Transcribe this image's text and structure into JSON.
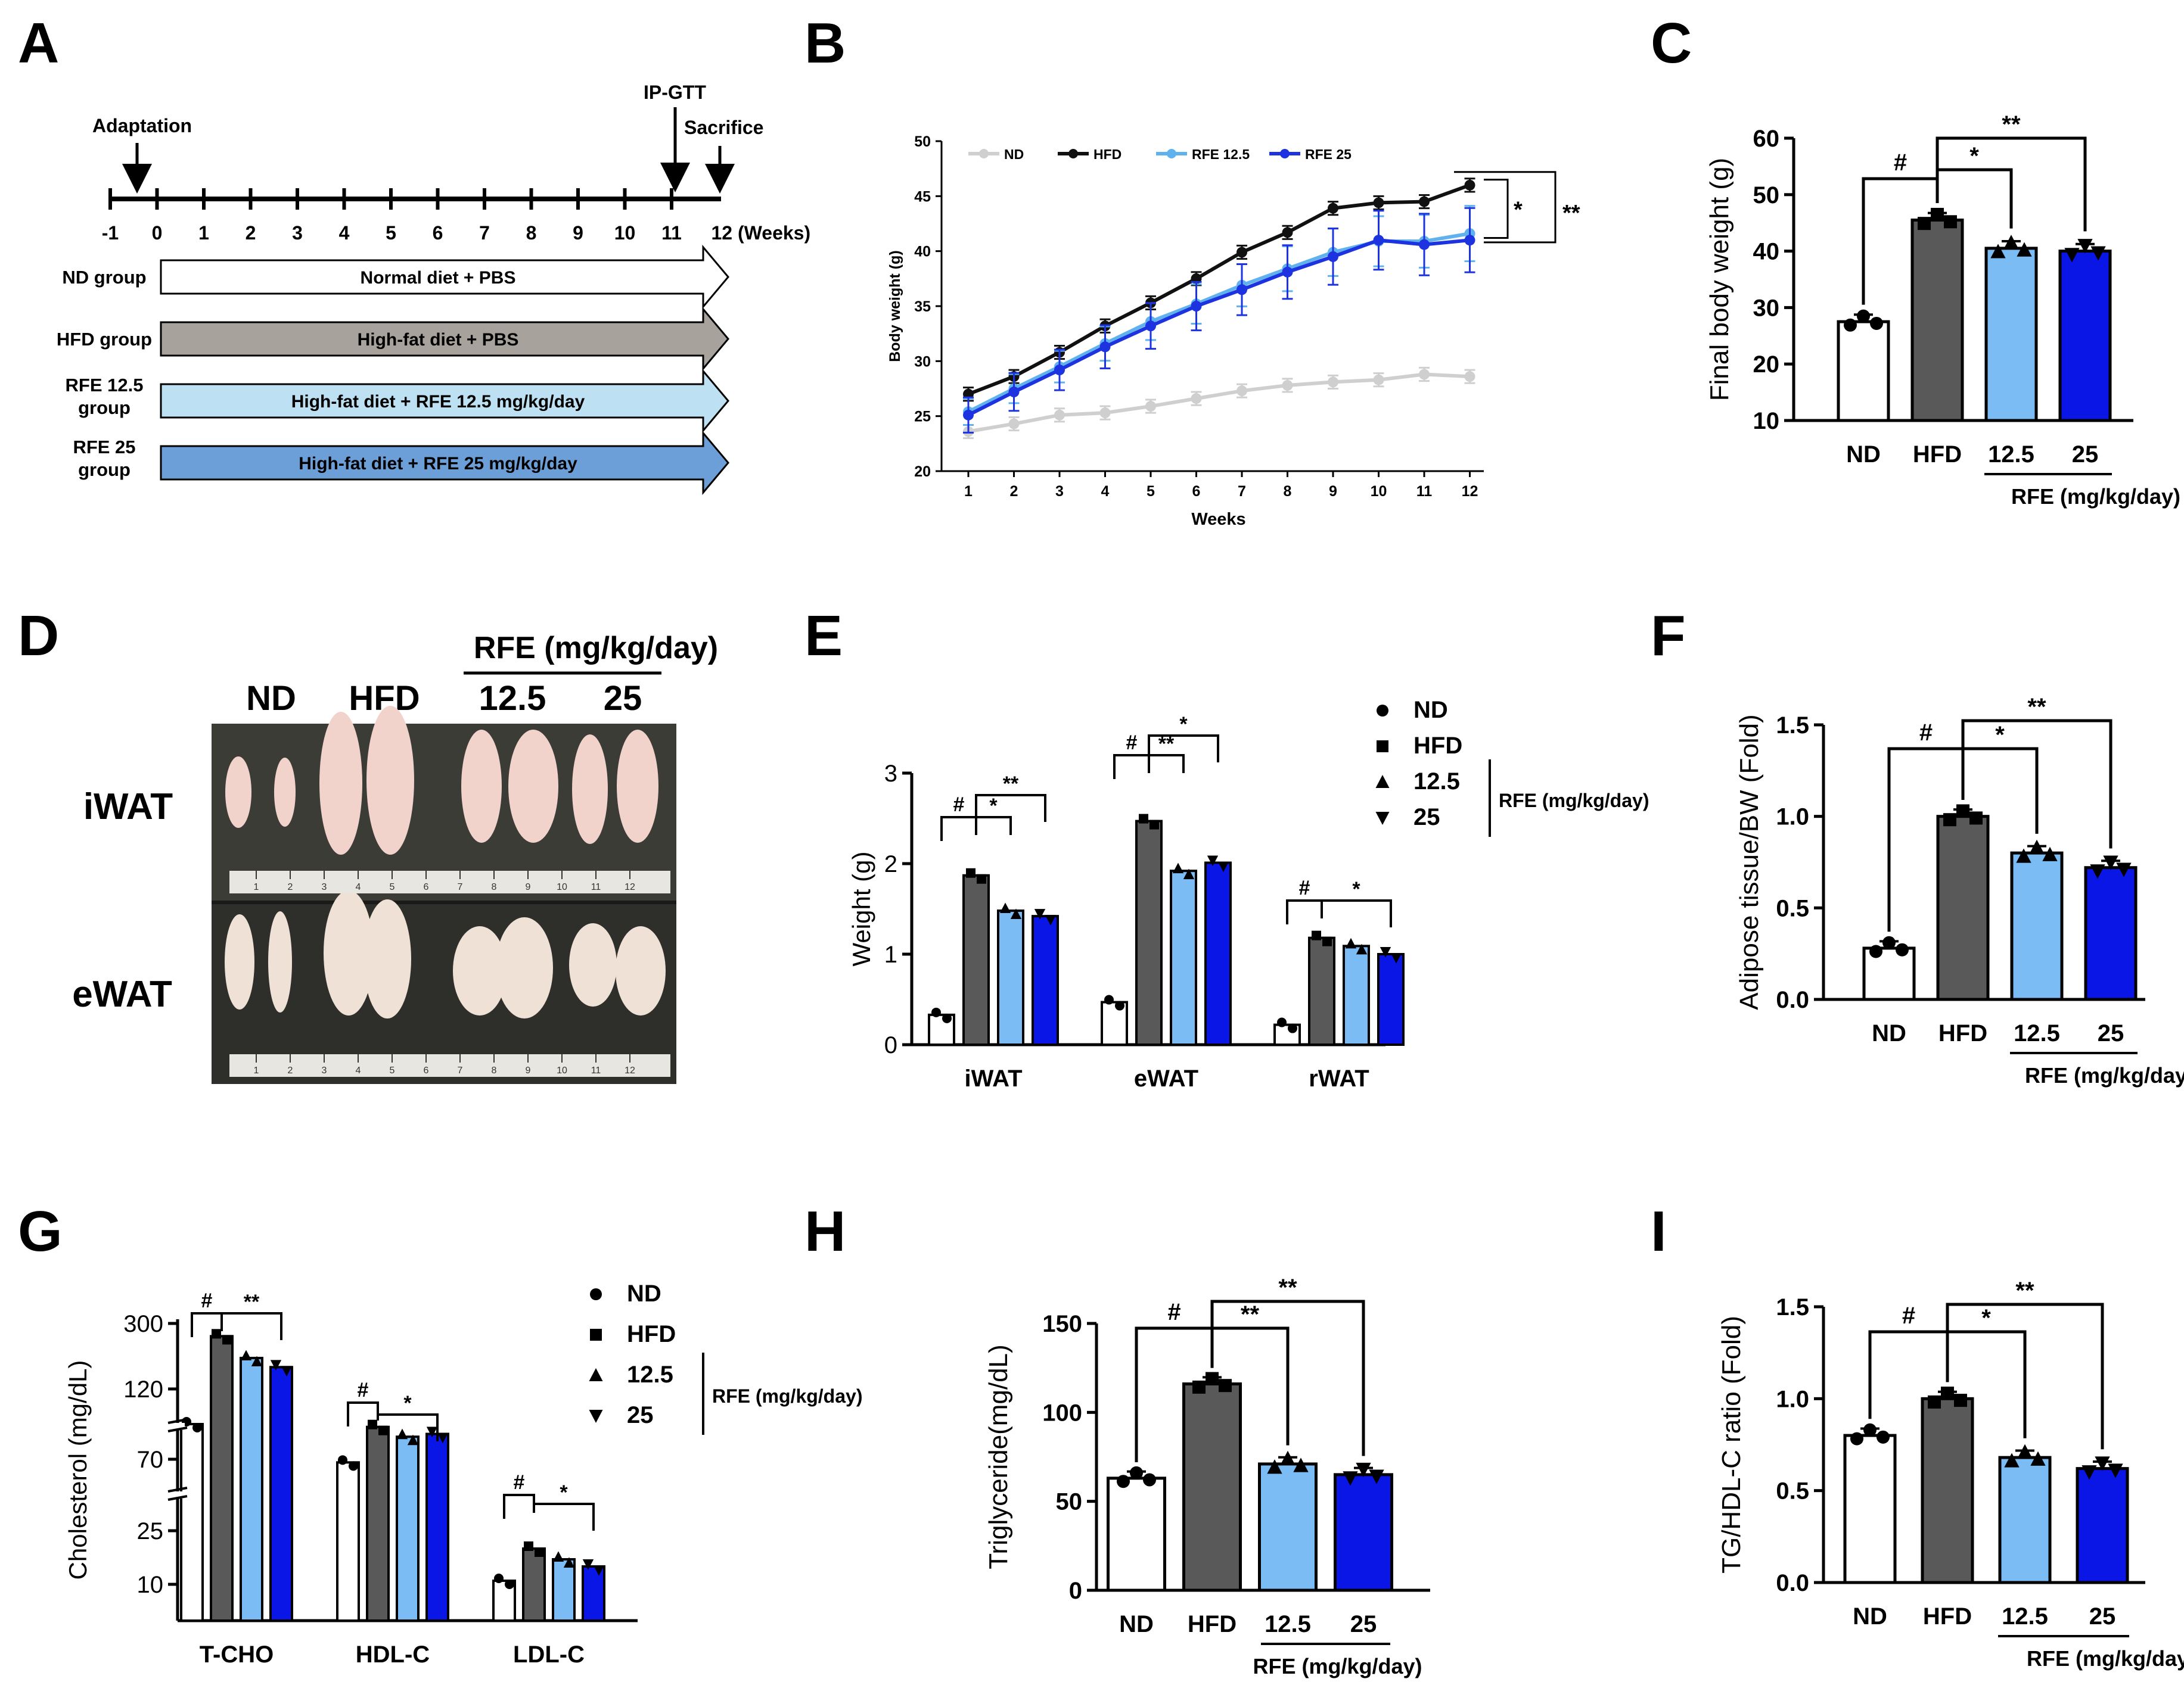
{
  "colors": {
    "nd": "#ffffff",
    "hfd": "#595959",
    "rfe125": "#7bbcf5",
    "rfe25": "#0a16e6",
    "line_nd": "#cfcfcf",
    "line_hfd": "#111111",
    "line_rfe125": "#5fb2ee",
    "line_rfe25": "#1d33e0",
    "gray_arrow": "#a8a29c",
    "light_blue_arrow": "#bde0f3",
    "blue_arrow": "#6c9fd8",
    "photo_bg": "#2e2f2b"
  },
  "panels": {
    "A": "A",
    "B": "B",
    "C": "C",
    "D": "D",
    "E": "E",
    "F": "F",
    "G": "G",
    "H": "H",
    "I": "I"
  },
  "sig": {
    "hash": "#",
    "one": "*",
    "two": "**"
  },
  "timeline": {
    "adaptation": "Adaptation",
    "ipgtt": "IP-GTT",
    "sacrifice": "Sacrifice",
    "ticks": [
      "-1",
      "0",
      "1",
      "2",
      "3",
      "4",
      "5",
      "6",
      "7",
      "8",
      "9",
      "10",
      "11",
      "12 (Weeks)"
    ],
    "groups": [
      {
        "label1": "ND group",
        "label2": "",
        "text": "Normal diet + PBS",
        "color": "#ffffff"
      },
      {
        "label1": "HFD group",
        "label2": "",
        "text": "High-fat diet + PBS",
        "color": "#a8a29c"
      },
      {
        "label1": "RFE 12.5",
        "label2": "group",
        "text": "High-fat diet + RFE 12.5 mg/kg/day",
        "color": "#bde0f3"
      },
      {
        "label1": "RFE 25",
        "label2": "group",
        "text": "High-fat diet + RFE 25 mg/kg/day",
        "color": "#6c9fd8"
      }
    ]
  },
  "photo": {
    "rfe_header": "RFE (mg/kg/day)",
    "cols": [
      "ND",
      "HFD",
      "12.5",
      "25"
    ],
    "rows": [
      "iWAT",
      "eWAT"
    ],
    "ruler": [
      "1",
      "2",
      "3",
      "4",
      "5",
      "6",
      "7",
      "8",
      "9",
      "10",
      "11",
      "12"
    ]
  },
  "legend_groups": [
    "ND",
    "HFD",
    "12.5",
    "25"
  ],
  "legend_rfe": "RFE (mg/kg/day)",
  "chart_data": [
    {
      "panel": "B",
      "type": "line",
      "xlabel": "Weeks",
      "ylabel": "Body weight (g)",
      "x": [
        1,
        2,
        3,
        4,
        5,
        6,
        7,
        8,
        9,
        10,
        11,
        12
      ],
      "ylim": [
        20,
        50
      ],
      "yticks": [
        20,
        25,
        30,
        35,
        40,
        45,
        50
      ],
      "series": [
        {
          "name": "ND",
          "values": [
            23.6,
            24.3,
            25.1,
            25.3,
            25.9,
            26.6,
            27.3,
            27.8,
            28.1,
            28.3,
            28.8,
            28.6
          ]
        },
        {
          "name": "HFD",
          "values": [
            27.0,
            28.6,
            30.8,
            33.2,
            35.3,
            37.5,
            39.9,
            41.7,
            43.9,
            44.4,
            44.5,
            46.0
          ]
        },
        {
          "name": "RFE 12.5",
          "values": [
            25.4,
            27.5,
            29.5,
            31.6,
            33.6,
            35.2,
            36.9,
            38.4,
            39.9,
            40.9,
            40.9,
            41.6
          ]
        },
        {
          "name": "RFE 25",
          "values": [
            25.1,
            27.2,
            29.2,
            31.3,
            33.2,
            35.0,
            36.5,
            38.1,
            39.5,
            41.0,
            40.6,
            41.0
          ]
        }
      ],
      "annotation_inner": "*",
      "annotation_outer": "**"
    },
    {
      "panel": "C",
      "type": "bar",
      "ylabel": "Final body weight (g)",
      "categories": [
        "ND",
        "HFD",
        "12.5",
        "25"
      ],
      "values": [
        27.5,
        45.5,
        40.5,
        40.0
      ],
      "ylim": [
        10,
        60
      ],
      "yticks": [
        10,
        20,
        30,
        40,
        50,
        60
      ],
      "xgroup": "RFE (mg/kg/day)"
    },
    {
      "panel": "E",
      "type": "bar",
      "ylabel": "Weight (g)",
      "categories": [
        "iWAT",
        "eWAT",
        "rWAT"
      ],
      "series": [
        {
          "name": "ND",
          "values": [
            0.33,
            0.47,
            0.22
          ]
        },
        {
          "name": "HFD",
          "values": [
            1.87,
            2.47,
            1.18
          ]
        },
        {
          "name": "12.5",
          "values": [
            1.48,
            1.92,
            1.09
          ]
        },
        {
          "name": "25",
          "values": [
            1.42,
            2.01,
            1.0
          ]
        }
      ],
      "ylim": [
        0,
        3
      ],
      "yticks": [
        0,
        1,
        2,
        3
      ]
    },
    {
      "panel": "F",
      "type": "bar",
      "ylabel": "Adipose tissue/BW (Fold)",
      "categories": [
        "ND",
        "HFD",
        "12.5",
        "25"
      ],
      "values": [
        0.28,
        1.0,
        0.8,
        0.72
      ],
      "ylim": [
        0,
        1.5
      ],
      "yticks": [
        "0.0",
        "0.5",
        "1.0",
        "1.5"
      ],
      "xgroup": "RFE (mg/kg/day)"
    },
    {
      "panel": "G",
      "type": "bar",
      "ylabel": "Cholesterol (mg/dL)",
      "categories": [
        "T-CHO",
        "HDL-C",
        "LDL-C"
      ],
      "series": [
        {
          "name": "ND",
          "values": [
            95,
            68,
            11
          ]
        },
        {
          "name": "HFD",
          "values": [
            265,
            93,
            20
          ]
        },
        {
          "name": "12.5",
          "values": [
            205,
            86,
            17
          ]
        },
        {
          "name": "25",
          "values": [
            180,
            88,
            15
          ]
        }
      ],
      "yticks": [
        "10",
        "25",
        "70",
        "120",
        "300"
      ],
      "axis": "broken"
    },
    {
      "panel": "H",
      "type": "bar",
      "ylabel": "Triglyceride(mg/dL)",
      "categories": [
        "ND",
        "HFD",
        "12.5",
        "25"
      ],
      "values": [
        63,
        116,
        71,
        65
      ],
      "ylim": [
        0,
        150
      ],
      "yticks": [
        0,
        50,
        100,
        150
      ],
      "xgroup": "RFE (mg/kg/day)"
    },
    {
      "panel": "I",
      "type": "bar",
      "ylabel": "TG/HDL-C ratio (Fold)",
      "categories": [
        "ND",
        "HFD",
        "12.5",
        "25"
      ],
      "values": [
        0.8,
        1.0,
        0.68,
        0.62
      ],
      "ylim": [
        0,
        1.5
      ],
      "yticks": [
        "0.0",
        "0.5",
        "1.0",
        "1.5"
      ],
      "xgroup": "RFE (mg/kg/day)"
    }
  ]
}
